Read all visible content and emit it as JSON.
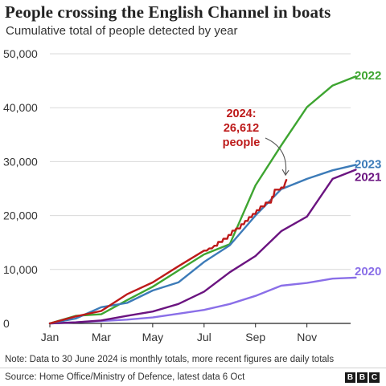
{
  "header": {
    "title": "People crossing the English Channel in boats",
    "subtitle": "Cumulative total of people detected by year"
  },
  "footer": {
    "note": "Note: Data to 30 June 2024 is monthly totals, more recent figures are daily totals",
    "source": "Source: Home Office/Ministry of Defence, latest data 6 Oct",
    "logo_letters": [
      "B",
      "B",
      "C"
    ]
  },
  "chart_data": {
    "type": "line",
    "title": "People crossing the English Channel in boats",
    "subtitle": "Cumulative total of people detected by year",
    "xlabel": "",
    "ylabel": "",
    "x_ticks": [
      "Jan",
      "Mar",
      "May",
      "Jul",
      "Sep",
      "Nov"
    ],
    "x_tick_positions": [
      1,
      3,
      5,
      7,
      9,
      11
    ],
    "xlim": [
      1,
      12.7
    ],
    "y_ticks": [
      "0",
      "10,000",
      "20,000",
      "30,000",
      "40,000",
      "50,000"
    ],
    "y_tick_values": [
      0,
      10000,
      20000,
      30000,
      40000,
      50000
    ],
    "ylim": [
      0,
      50000
    ],
    "grid": "horizontal",
    "legend": "direct labels at line ends",
    "series": [
      {
        "name": "2020",
        "color": "#8a6fe8",
        "points": [
          [
            1,
            0
          ],
          [
            2,
            200
          ],
          [
            3,
            450
          ],
          [
            4,
            700
          ],
          [
            5,
            1100
          ],
          [
            6,
            1800
          ],
          [
            7,
            2500
          ],
          [
            8,
            3600
          ],
          [
            9,
            5100
          ],
          [
            10,
            7000
          ],
          [
            11,
            7500
          ],
          [
            12,
            8300
          ],
          [
            12.9,
            8500
          ]
        ]
      },
      {
        "name": "2021",
        "color": "#6b1480",
        "points": [
          [
            1,
            0
          ],
          [
            2,
            200
          ],
          [
            3,
            550
          ],
          [
            4,
            1400
          ],
          [
            5,
            2200
          ],
          [
            6,
            3600
          ],
          [
            7,
            5900
          ],
          [
            8,
            9500
          ],
          [
            9,
            12500
          ],
          [
            10,
            17100
          ],
          [
            11,
            19800
          ],
          [
            12,
            26800
          ],
          [
            12.9,
            28500
          ]
        ]
      },
      {
        "name": "2022",
        "color": "#3ea531",
        "points": [
          [
            1,
            0
          ],
          [
            2,
            1400
          ],
          [
            3,
            1700
          ],
          [
            4,
            4300
          ],
          [
            5,
            6800
          ],
          [
            6,
            9800
          ],
          [
            7,
            12800
          ],
          [
            8,
            14700
          ],
          [
            9,
            25600
          ],
          [
            10,
            33000
          ],
          [
            11,
            40100
          ],
          [
            12,
            44100
          ],
          [
            12.9,
            45800
          ]
        ]
      },
      {
        "name": "2023",
        "color": "#3c7bb8",
        "points": [
          [
            1,
            0
          ],
          [
            2,
            900
          ],
          [
            3,
            3000
          ],
          [
            4,
            3800
          ],
          [
            5,
            6100
          ],
          [
            6,
            7600
          ],
          [
            7,
            11400
          ],
          [
            8,
            14500
          ],
          [
            9,
            20000
          ],
          [
            10,
            24900
          ],
          [
            11,
            26800
          ],
          [
            12,
            28400
          ],
          [
            12.9,
            29400
          ]
        ]
      },
      {
        "name": "2024",
        "color": "#bd1a1a",
        "points": [
          [
            1,
            0
          ],
          [
            2,
            1300
          ],
          [
            3,
            2300
          ],
          [
            4,
            5400
          ],
          [
            5,
            7600
          ],
          [
            6,
            10600
          ],
          [
            7,
            13500
          ],
          [
            7.1,
            13500
          ],
          [
            7.2,
            13900
          ],
          [
            7.3,
            13900
          ],
          [
            7.4,
            14400
          ],
          [
            7.5,
            14400
          ],
          [
            7.55,
            15100
          ],
          [
            7.7,
            15100
          ],
          [
            7.75,
            15700
          ],
          [
            7.9,
            15700
          ],
          [
            7.95,
            16400
          ],
          [
            8.05,
            16400
          ],
          [
            8.1,
            17200
          ],
          [
            8.2,
            17200
          ],
          [
            8.25,
            17600
          ],
          [
            8.4,
            17600
          ],
          [
            8.45,
            18400
          ],
          [
            8.55,
            18400
          ],
          [
            8.6,
            19000
          ],
          [
            8.7,
            19000
          ],
          [
            8.75,
            19700
          ],
          [
            8.85,
            19700
          ],
          [
            8.9,
            20300
          ],
          [
            9.0,
            20300
          ],
          [
            9.05,
            21000
          ],
          [
            9.15,
            21000
          ],
          [
            9.2,
            21700
          ],
          [
            9.35,
            21700
          ],
          [
            9.4,
            22400
          ],
          [
            9.6,
            22400
          ],
          [
            9.65,
            23500
          ],
          [
            9.7,
            23500
          ],
          [
            9.75,
            24800
          ],
          [
            9.95,
            24800
          ],
          [
            10.0,
            25200
          ],
          [
            10.1,
            25200
          ],
          [
            10.15,
            26000
          ],
          [
            10.2,
            26612
          ]
        ]
      }
    ],
    "end_labels": [
      "2022",
      "2023",
      "2021",
      "2020"
    ],
    "annotation": {
      "lines": [
        "2024:",
        "26,612",
        "people"
      ],
      "color": "#bd1a1a",
      "points_to": [
        10.2,
        26612
      ]
    }
  }
}
